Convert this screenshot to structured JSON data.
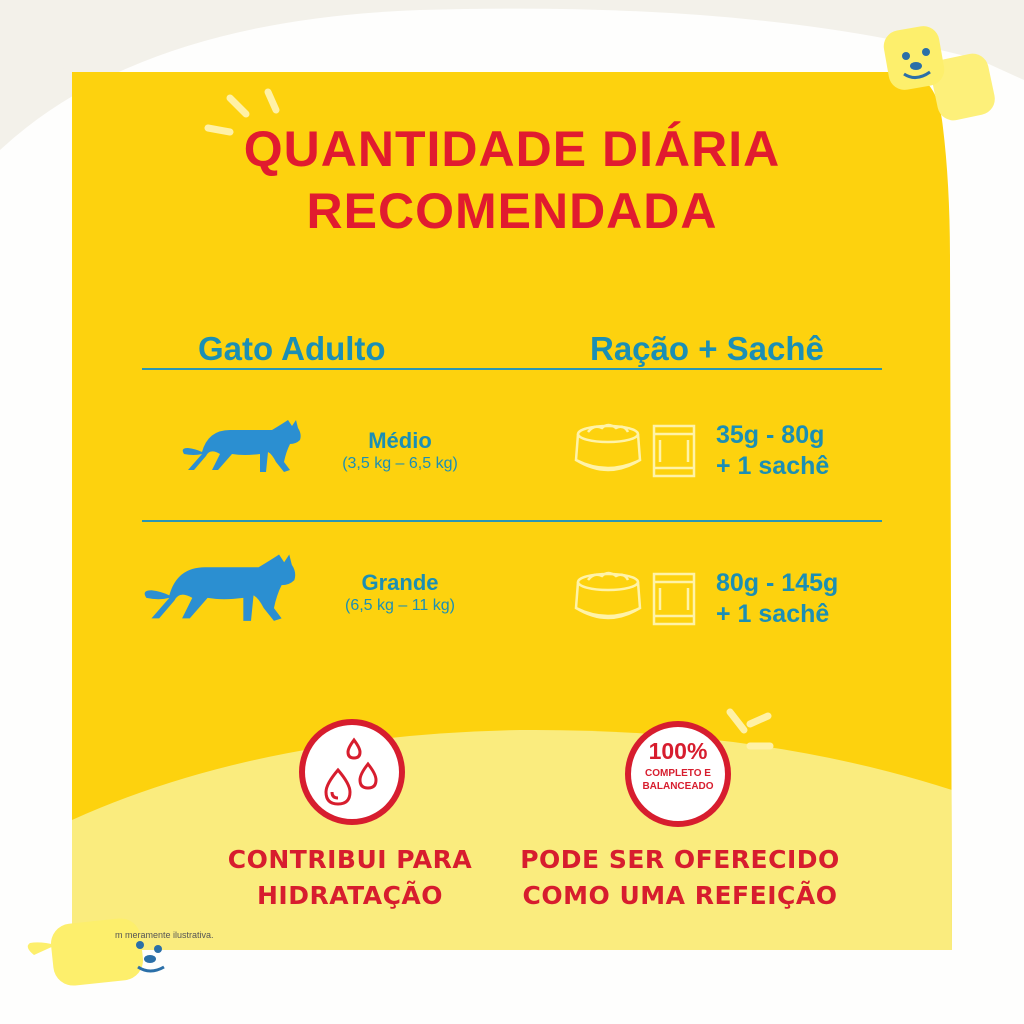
{
  "title": {
    "line1": "QUANTIDADE DIÁRIA",
    "line2": "RECOMENDADA"
  },
  "columns": {
    "left": "Gato Adulto",
    "right": "Ração + Sachê"
  },
  "rows": [
    {
      "size": "Médio",
      "range": "(3,5 kg – 6,5 kg)",
      "amount_line1": "35g - 80g",
      "amount_line2": "+ 1 sachê"
    },
    {
      "size": "Grande",
      "range": "(6,5 kg – 11 kg)",
      "amount_line1": "80g - 145g",
      "amount_line2": "+ 1 sachê"
    }
  ],
  "benefits": [
    {
      "line1": "CONTRIBUI PARA",
      "line2": "HIDRATAÇÃO",
      "icon": "water-drops-icon"
    },
    {
      "line1": "PODE SER OFERECIDO",
      "line2": "COMO UMA REFEIÇÃO",
      "icon": "complete-balanced-badge-icon"
    }
  ],
  "badge": {
    "percent": "100%",
    "line1": "COMPLETO E",
    "line2": "BALANCEADO"
  },
  "disclaimer": "m meramente ilustrativa.",
  "colors": {
    "yellow": "#fdd20e",
    "light_yellow": "#faec7e",
    "red": "#e11b2f",
    "blue": "#1b8fb4",
    "background": "#f3f1ea"
  }
}
